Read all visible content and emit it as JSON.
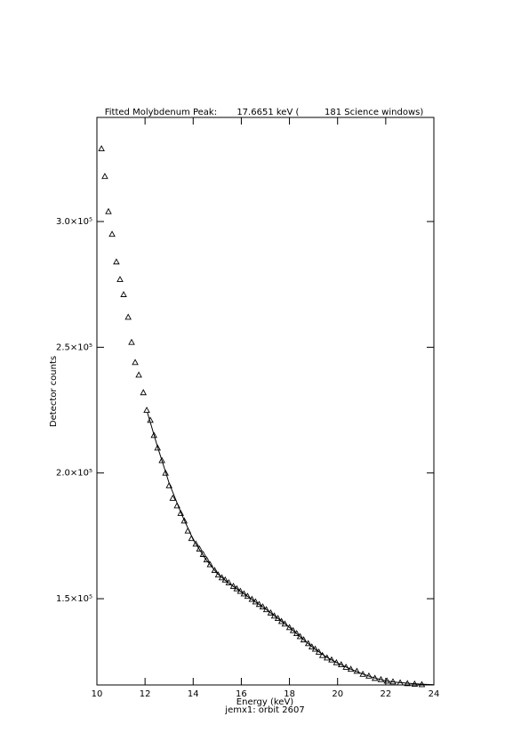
{
  "chart_data": {
    "type": "scatter",
    "title": "Fitted Molybdenum Peak:       17.6651 keV (         181 Science windows)",
    "x_label": "Energy (keV)",
    "subtitle": "jemx1: orbit 2607",
    "y_label": "Detector counts",
    "xlim": [
      10,
      24
    ],
    "xticks": [
      10,
      12,
      14,
      16,
      18,
      20,
      22,
      24
    ],
    "ylim": [
      115700,
      341400
    ],
    "yticks": [
      {
        "value": 150000,
        "label": "1.5×10⁵"
      },
      {
        "value": 200000,
        "label": "2.0×10⁵"
      },
      {
        "value": 250000,
        "label": "2.5×10⁵"
      },
      {
        "value": 300000,
        "label": "3.0×10⁵"
      }
    ],
    "series": [
      {
        "marker": "triangle",
        "color": "#000000",
        "x": [
          10.19,
          10.33,
          10.48,
          10.63,
          10.81,
          10.96,
          11.11,
          11.3,
          11.44,
          11.59,
          11.74,
          11.93,
          12.07,
          12.22,
          12.37,
          12.52,
          12.7,
          12.85,
          13.0,
          13.15,
          13.33,
          13.48,
          13.63,
          13.78,
          13.93,
          14.11,
          14.26,
          14.41,
          14.56,
          14.7,
          14.89,
          15.04,
          15.19,
          15.33,
          15.48,
          15.67,
          15.81,
          15.96,
          16.11,
          16.26,
          16.44,
          16.59,
          16.74,
          16.89,
          17.04,
          17.22,
          17.37,
          17.52,
          17.67,
          17.81,
          18.0,
          18.15,
          18.3,
          18.44,
          18.59,
          18.78,
          18.93,
          19.07,
          19.22,
          19.37,
          19.56,
          19.75,
          19.95,
          20.15,
          20.35,
          20.55,
          20.8,
          21.05,
          21.3,
          21.55,
          21.8,
          22.05,
          22.3,
          22.6,
          22.9,
          23.2,
          23.5
        ],
        "values": [
          329000,
          318000,
          304000,
          295000,
          284000,
          277000,
          271000,
          262000,
          252000,
          244000,
          239000,
          232000,
          225000,
          221000,
          215000,
          210000,
          205000,
          200000,
          195000,
          190000,
          187000,
          184000,
          181000,
          177000,
          174000,
          171800,
          169800,
          167700,
          165500,
          163600,
          161300,
          159500,
          158400,
          157500,
          156400,
          155000,
          154000,
          153000,
          152000,
          151000,
          149800,
          148800,
          147800,
          146800,
          145700,
          144400,
          143200,
          142200,
          141000,
          140000,
          138600,
          137400,
          136200,
          135000,
          133700,
          132200,
          130900,
          130000,
          128800,
          127500,
          126500,
          125700,
          124600,
          123800,
          122800,
          122000,
          121200,
          120000,
          119300,
          118400,
          117900,
          117300,
          117000,
          116600,
          116300,
          116100,
          115900
        ]
      },
      {
        "marker": "line",
        "color": "#000000",
        "x": [
          12.1,
          12.5,
          13,
          13.5,
          14,
          14.5,
          15,
          15.5,
          16,
          16.5,
          17,
          17.5,
          18,
          18.5,
          19,
          19.5,
          20,
          20.5,
          21,
          21.5,
          22,
          22.5,
          23,
          23.5,
          24
        ],
        "values": [
          224000,
          211000,
          196000,
          184000,
          173500,
          166000,
          160000,
          156000,
          152700,
          149300,
          146000,
          142300,
          138600,
          134400,
          130400,
          127000,
          124400,
          122200,
          120200,
          118600,
          117300,
          116700,
          116300,
          116000,
          115800
        ]
      }
    ]
  }
}
